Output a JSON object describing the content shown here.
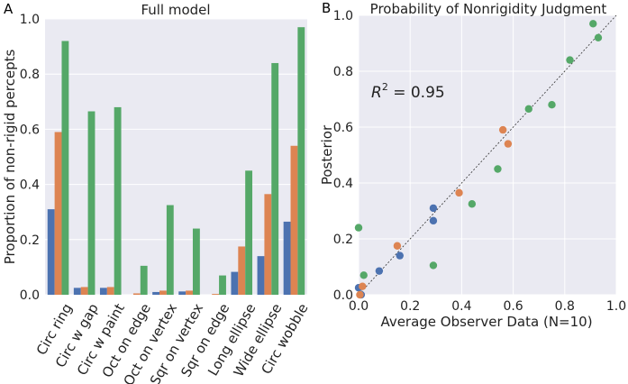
{
  "panels": {
    "a_label": "A",
    "b_label": "B"
  },
  "colors": {
    "plot_bg": "#eaeaf2",
    "grid": "#ffffff",
    "series1": "#4c72b0",
    "series2": "#dd8452",
    "series3": "#55a868"
  },
  "chart_data": [
    {
      "type": "bar",
      "title": "Full model",
      "xlabel": "",
      "ylabel": "Proportion of non-rigid percepts",
      "ylim": [
        0,
        1.0
      ],
      "yticks": [
        "0.0",
        "0.2",
        "0.4",
        "0.6",
        "0.8",
        "1.0"
      ],
      "categories": [
        "Circ ring",
        "Circ w gap",
        "Circ w paint",
        "Oct on edge",
        "Oct on vertex",
        "Sqr on vertex",
        "Sqr on edge",
        "Long ellipse",
        "Wide ellipse",
        "Circ wobble"
      ],
      "series": [
        {
          "name": "series 1",
          "values": [
            0.31,
            0.025,
            0.025,
            0.0,
            0.01,
            0.012,
            0.0,
            0.083,
            0.14,
            0.265
          ]
        },
        {
          "name": "series 2",
          "values": [
            0.59,
            0.028,
            0.028,
            0.005,
            0.015,
            0.015,
            0.003,
            0.175,
            0.365,
            0.54
          ]
        },
        {
          "name": "series 3",
          "values": [
            0.92,
            0.665,
            0.68,
            0.105,
            0.325,
            0.24,
            0.07,
            0.45,
            0.84,
            0.97
          ]
        }
      ]
    },
    {
      "type": "scatter",
      "title": "Probability of Nonrigidity Judgment",
      "xlabel": "Average Observer Data (N=10)",
      "ylabel": "Posterior",
      "xlim": [
        0,
        1.0
      ],
      "ylim": [
        0,
        1.0
      ],
      "xticks": [
        "0.0",
        "0.2",
        "0.4",
        "0.6",
        "0.8",
        "1.0"
      ],
      "yticks": [
        "0.0",
        "0.2",
        "0.4",
        "0.6",
        "0.8",
        "1.0"
      ],
      "annotation_label": "R",
      "annotation_exp": "2",
      "annotation_rest": " =  0.95",
      "diagonal": [
        [
          0,
          0
        ],
        [
          1,
          1
        ]
      ],
      "series": [
        {
          "name": "series 1",
          "x": [
            0.0,
            0.01,
            0.08,
            0.16,
            0.29,
            0.29
          ],
          "y": [
            0.025,
            0.0,
            0.085,
            0.14,
            0.31,
            0.265
          ]
        },
        {
          "name": "series 2",
          "x": [
            0.005,
            0.015,
            0.15,
            0.39,
            0.56,
            0.58
          ],
          "y": [
            0.0,
            0.03,
            0.175,
            0.365,
            0.59,
            0.54
          ]
        },
        {
          "name": "series 3",
          "x": [
            0.0,
            0.02,
            0.29,
            0.44,
            0.54,
            0.66,
            0.75,
            0.82,
            0.91,
            0.93
          ],
          "y": [
            0.24,
            0.07,
            0.105,
            0.325,
            0.45,
            0.665,
            0.68,
            0.84,
            0.97,
            0.92
          ]
        }
      ]
    }
  ]
}
